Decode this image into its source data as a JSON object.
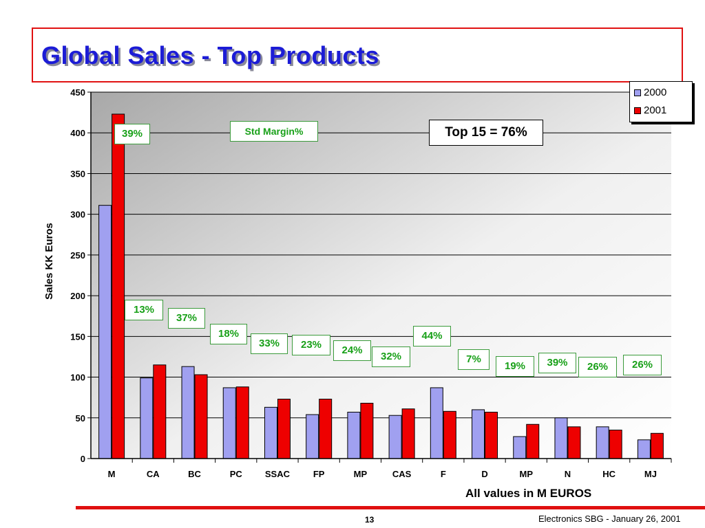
{
  "slide": {
    "title": "Global Sales - Top Products",
    "std_margin_label": "Std Margin%",
    "top15_label": "Top 15 = 76%",
    "units_note": "All values in M EUROS",
    "page_number": "13",
    "footer": "Electronics SBG  - January 26, 2001"
  },
  "colors": {
    "series_2000": "#a0a0f0",
    "series_2001": "#ee0000",
    "title": "#1c1cd6",
    "accent_red": "#e01010",
    "margin_green": "#18a018"
  },
  "chart_data": {
    "type": "bar",
    "categories": [
      "M",
      "CA",
      "BC",
      "PC",
      "SSAC",
      "FP",
      "MP",
      "CAS",
      "F",
      "D",
      "MP",
      "N",
      "HC",
      "MJ"
    ],
    "series": [
      {
        "name": "2000",
        "values": [
          311,
          99,
          113,
          87,
          63,
          54,
          57,
          53,
          87,
          60,
          27,
          50,
          39,
          23
        ]
      },
      {
        "name": "2001",
        "values": [
          423,
          115,
          103,
          88,
          73,
          73,
          68,
          61,
          58,
          57,
          42,
          39,
          35,
          31
        ]
      }
    ],
    "margin_labels": [
      "39%",
      "13%",
      "37%",
      "18%",
      "33%",
      "23%",
      "24%",
      "32%",
      "44%",
      "7%",
      "19%",
      "39%",
      "26%",
      "26%"
    ],
    "ylabel": "Sales KK Euros",
    "xlabel": "",
    "ylim": [
      0,
      450
    ],
    "yticks": [
      0,
      50,
      100,
      150,
      200,
      250,
      300,
      350,
      400,
      450
    ],
    "legend": "top-right",
    "grid": true
  }
}
